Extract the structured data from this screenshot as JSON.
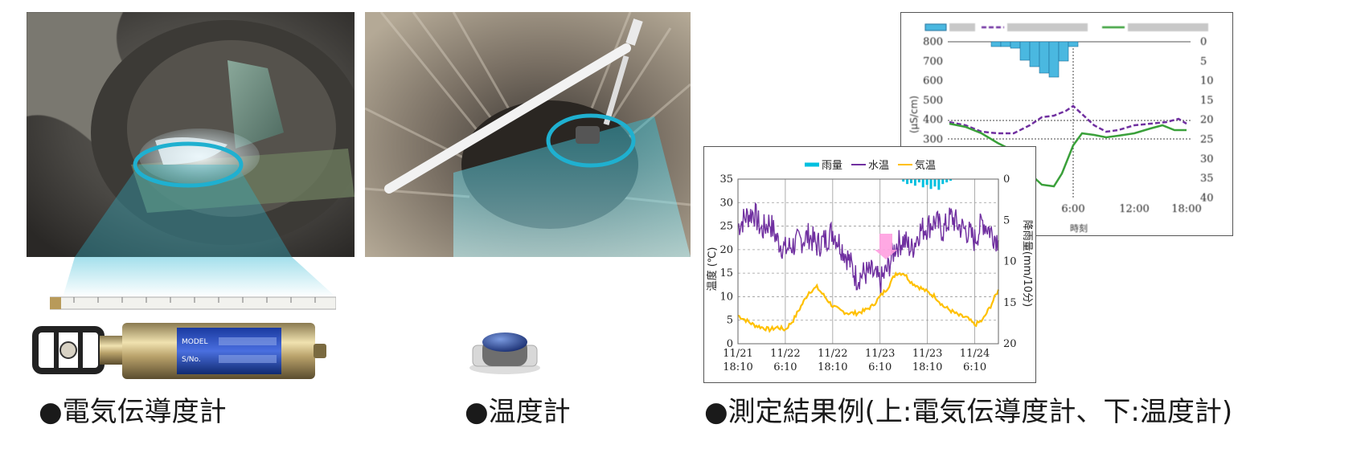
{
  "captions": {
    "ec_meter": "●電気伝導度計",
    "thermometer": "●温度計",
    "results": "●測定結果例(上:電気伝導度計、下:温度計)"
  },
  "device_labels": {
    "model_tag": "MODEL",
    "sn_tag": "S/No."
  },
  "colors": {
    "rain": "#00c0e0",
    "water_temp": "#7030a0",
    "air_temp": "#ffc000",
    "conductivity_dashed": "#7030a0",
    "conductivity_solid": "#3aa03a",
    "rain_bars_upper": "#4ab8e0",
    "highlight_arrow": "#ff9ee0"
  },
  "chart_data": [
    {
      "type": "line",
      "legend": [
        "雨量",
        "水温",
        "気温"
      ],
      "ylabel": "温度 (℃)",
      "y2label": "降雨量(mm/10分)",
      "ylim": [
        0,
        35
      ],
      "y2lim": [
        0,
        20
      ],
      "y_ticks": [
        0,
        5,
        10,
        15,
        20,
        25,
        30,
        35
      ],
      "y2_ticks": [
        0,
        5,
        10,
        15,
        20
      ],
      "x_ticks": [
        {
          "date": "11/21",
          "time": "18:10"
        },
        {
          "date": "11/22",
          "time": "6:10"
        },
        {
          "date": "11/22",
          "time": "18:10"
        },
        {
          "date": "11/23",
          "time": "6:10"
        },
        {
          "date": "11/23",
          "time": "18:10"
        },
        {
          "date": "11/24",
          "time": "6:10"
        }
      ],
      "x_hours": [
        0,
        12,
        24,
        36,
        48,
        60
      ],
      "x_range_hours": [
        0,
        66
      ],
      "series": [
        {
          "name": "水温",
          "hours": [
            0,
            2,
            4,
            6,
            8,
            10,
            12,
            14,
            16,
            18,
            20,
            22,
            24,
            26,
            28,
            30,
            32,
            34,
            36,
            38,
            40,
            42,
            44,
            46,
            48,
            50,
            52,
            54,
            56,
            58,
            60,
            62,
            64,
            66
          ],
          "values": [
            25,
            27,
            28,
            24,
            26,
            22,
            20,
            21,
            22,
            23,
            21,
            22,
            24,
            21,
            18,
            14,
            15,
            15,
            13,
            16,
            21,
            22,
            20,
            24,
            25,
            26,
            24,
            27,
            25,
            24,
            22,
            26,
            24,
            22
          ]
        },
        {
          "name": "気温",
          "hours": [
            0,
            2,
            4,
            6,
            8,
            10,
            12,
            14,
            16,
            18,
            20,
            22,
            24,
            26,
            28,
            30,
            32,
            34,
            36,
            38,
            40,
            42,
            44,
            46,
            48,
            50,
            52,
            54,
            56,
            58,
            60,
            62,
            64,
            66
          ],
          "values": [
            6,
            5,
            4,
            3.5,
            3,
            3.5,
            3,
            5,
            8,
            11,
            12,
            10,
            8,
            7,
            6.5,
            6.5,
            7,
            8,
            10,
            12,
            15,
            15,
            13,
            12,
            11,
            10,
            8,
            7,
            6,
            5.5,
            4,
            5,
            8,
            11.5
          ]
        },
        {
          "name": "雨量",
          "hours": [
            42,
            43,
            44,
            45,
            46,
            47,
            48,
            49,
            50,
            51,
            52,
            53,
            54
          ],
          "values": [
            0.3,
            0.6,
            0.5,
            0.8,
            0.4,
            1.0,
            0.7,
            1.2,
            0.9,
            1.3,
            0.6,
            0.4,
            0.2
          ]
        }
      ]
    },
    {
      "type": "line",
      "ylim": [
        300,
        800
      ],
      "y_ticks": [
        300,
        400,
        500,
        600,
        700,
        800
      ],
      "y2_ticks": [
        0,
        5,
        10,
        15,
        20,
        25,
        30,
        35,
        40
      ],
      "x_ticks": [
        "6:00",
        "12:00",
        "18:00"
      ],
      "ylabel_visible_fragment": "(μS/cm)",
      "xlabel_visible_fragment": "時刻"
    }
  ]
}
